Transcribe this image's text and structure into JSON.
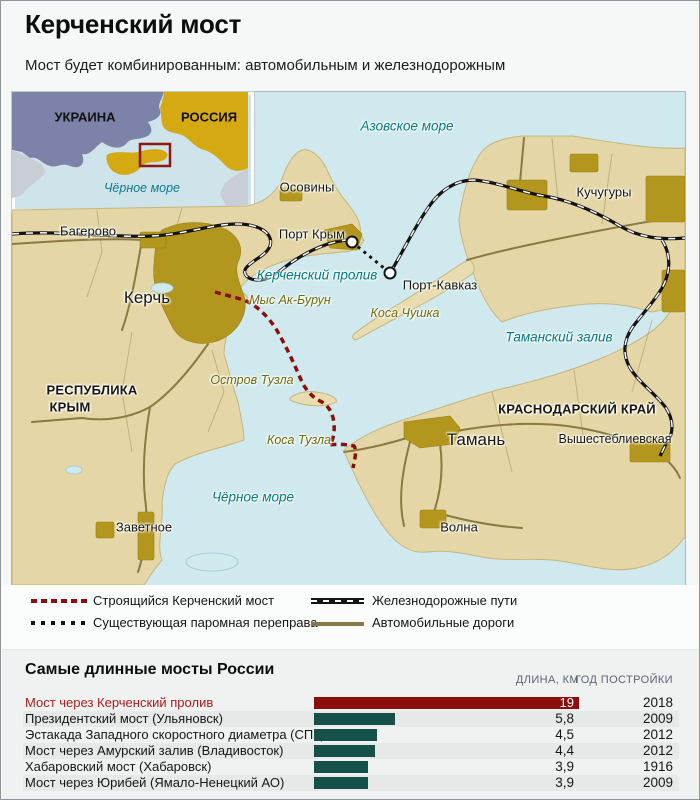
{
  "page": {
    "title": "Керченский мост",
    "subtitle": "Мост будет комбинированным: автомобильным и железнодорожным"
  },
  "inset_map": {
    "ukraine_label": "УКРАИНА",
    "russia_label": "РОССИЯ",
    "black_sea_label": "Чёрное море",
    "colors": {
      "ukraine": "#7c82a8",
      "russia": "#d4a912",
      "highlight_box": "#8b1a10",
      "other_land": "#c9ced6"
    }
  },
  "map": {
    "labels": {
      "azov_sea": "Азовское море",
      "osoviny": "Осовины",
      "kuchugury": "Кучугуры",
      "bagerovo": "Багерово",
      "port_krym": "Порт Крым",
      "kerch": "Керчь",
      "kerch_strait": "Керченский пролив",
      "port_kavkaz": "Порт-Кавказ",
      "cape_ak_burun": "Мыс Ак-Бурун",
      "chushka_spit": "Коса Чушка",
      "taman_bay": "Таманский залив",
      "tuzla_island": "Остров Тузла",
      "republic_crimea_line1": "РЕСПУБЛИКА",
      "republic_crimea_line2": "КРЫМ",
      "krasnodar_krai": "КРАСНОДАРСКИЙ КРАЙ",
      "tuzla_spit": "Коса Тузла",
      "taman": "Тамань",
      "vyshesteblievskaya": "Вышестеблиевская",
      "black_sea": "Чёрное море",
      "zavetnoe": "Заветное",
      "volna": "Волна"
    },
    "colors": {
      "sea": "#cfe9ee",
      "land": "#e4d6a6",
      "urban": "#b3961d",
      "bridge": "#8b0e0c",
      "railway": "#141414",
      "road": "#8a7a42",
      "water_label": "#00798b",
      "geo_label": "#6b6a15"
    }
  },
  "legend": {
    "items": [
      {
        "id": "bridge",
        "label": "Строящийся Керченский мост"
      },
      {
        "id": "ferry",
        "label": "Существующая паромная переправа"
      },
      {
        "id": "railway",
        "label": "Железнодорожные пути"
      },
      {
        "id": "road",
        "label": "Автомобильные дороги"
      }
    ]
  },
  "chart_data": {
    "type": "bar",
    "title": "Самые длинные мосты России",
    "length_header": "ДЛИНА, КМ",
    "year_header": "ГОД ПОСТРОЙКИ",
    "xlim": [
      0,
      19
    ],
    "rows": [
      {
        "label": "Мост через Керченский пролив",
        "km": 19,
        "value": "19",
        "year": "2018",
        "highlight": true
      },
      {
        "label": "Президентский мост (Ульяновск)",
        "km": 5.8,
        "value": "5,8",
        "year": "2009",
        "highlight": false
      },
      {
        "label": "Эстакада Западного скоростного диаметра (СПб)",
        "km": 4.5,
        "value": "4,5",
        "year": "2012",
        "highlight": false
      },
      {
        "label": "Мост через Амурский залив (Владивосток)",
        "km": 4.4,
        "value": "4,4",
        "year": "2012",
        "highlight": false
      },
      {
        "label": "Хабаровский мост (Хабаровск)",
        "km": 3.9,
        "value": "3,9",
        "year": "1916",
        "highlight": false
      },
      {
        "label": "Мост через Юрибей (Ямало-Ненецкий АО)",
        "km": 3.9,
        "value": "3,9",
        "year": "2009",
        "highlight": false
      }
    ],
    "colors": {
      "highlight_bar": "#8b0e0c",
      "bar": "#155049",
      "highlight_label": "#ad1f21"
    }
  }
}
